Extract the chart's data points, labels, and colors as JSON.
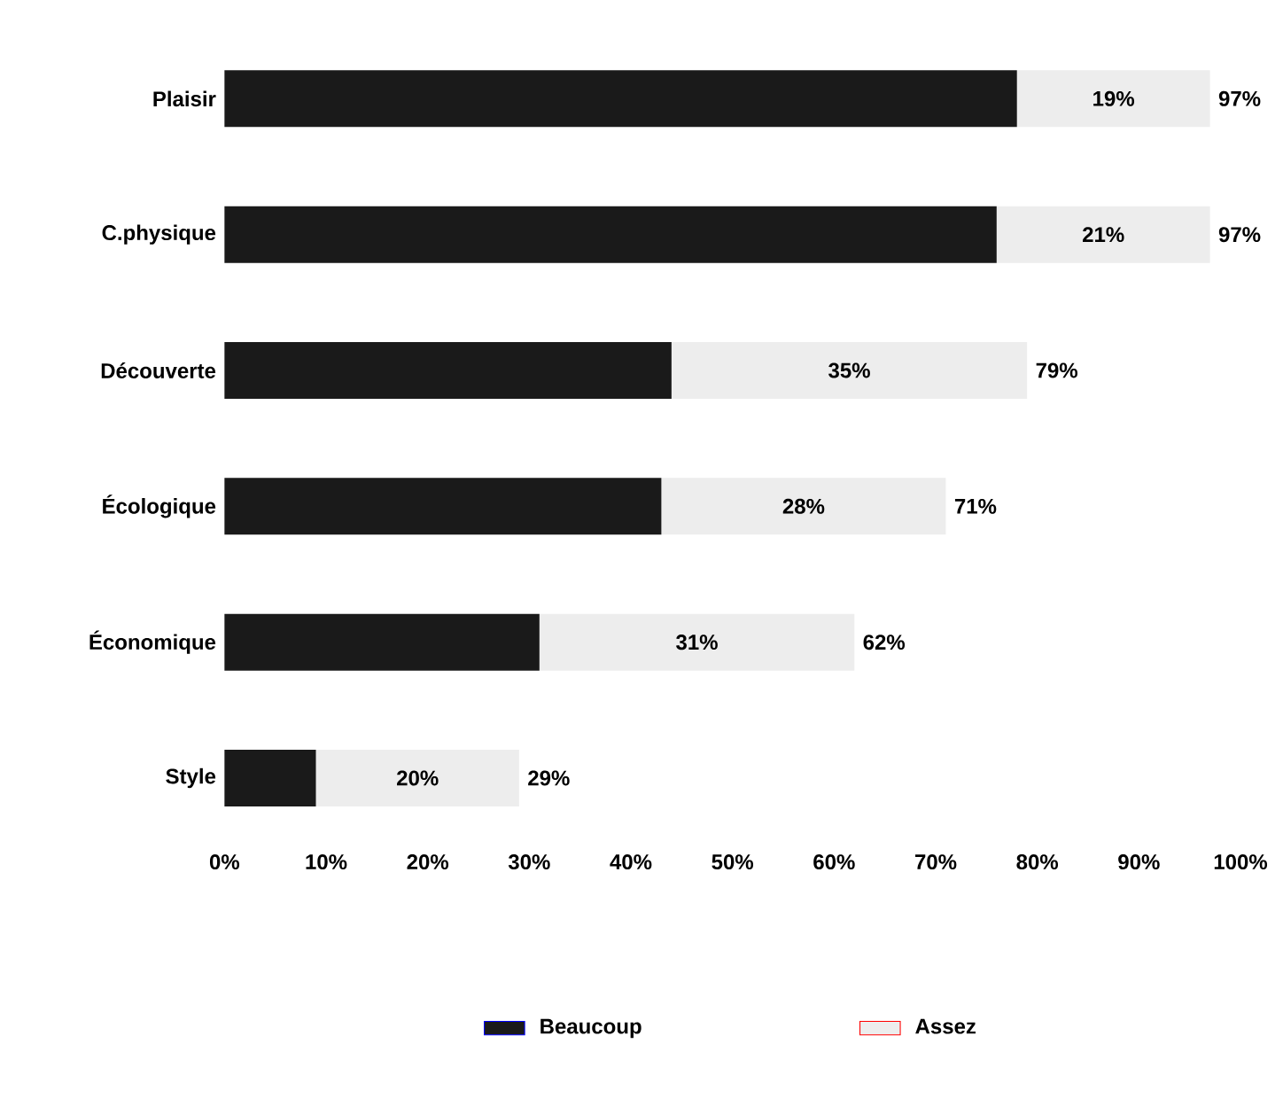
{
  "chart_data": {
    "type": "bar",
    "orientation": "horizontal",
    "stacked": true,
    "categories": [
      "Plaisir",
      "C.physique",
      "Découverte",
      "Écologique",
      "Économique",
      "Style"
    ],
    "series": [
      {
        "name": "Beaucoup",
        "color": "#1a1a1a",
        "values": [
          78,
          76,
          44,
          43,
          31,
          9
        ]
      },
      {
        "name": "Assez",
        "color": "#ededed",
        "values": [
          19,
          21,
          35,
          28,
          31,
          20
        ],
        "value_labels": [
          "19%",
          "21%",
          "35%",
          "28%",
          "31%",
          "20%"
        ]
      }
    ],
    "totals": [
      "97%",
      "97%",
      "79%",
      "71%",
      "62%",
      "29%"
    ],
    "xlim": [
      0,
      100
    ],
    "xticks": [
      {
        "value": 0,
        "label": "0%"
      },
      {
        "value": 10,
        "label": "10%"
      },
      {
        "value": 20,
        "label": "20%"
      },
      {
        "value": 30,
        "label": "30%"
      },
      {
        "value": 40,
        "label": "40%"
      },
      {
        "value": 50,
        "label": "50%"
      },
      {
        "value": 60,
        "label": "60%"
      },
      {
        "value": 70,
        "label": "70%"
      },
      {
        "value": 80,
        "label": "80%"
      },
      {
        "value": 90,
        "label": "90%"
      },
      {
        "value": 100,
        "label": "100%"
      }
    ],
    "grid": false,
    "legend": "bottom"
  }
}
